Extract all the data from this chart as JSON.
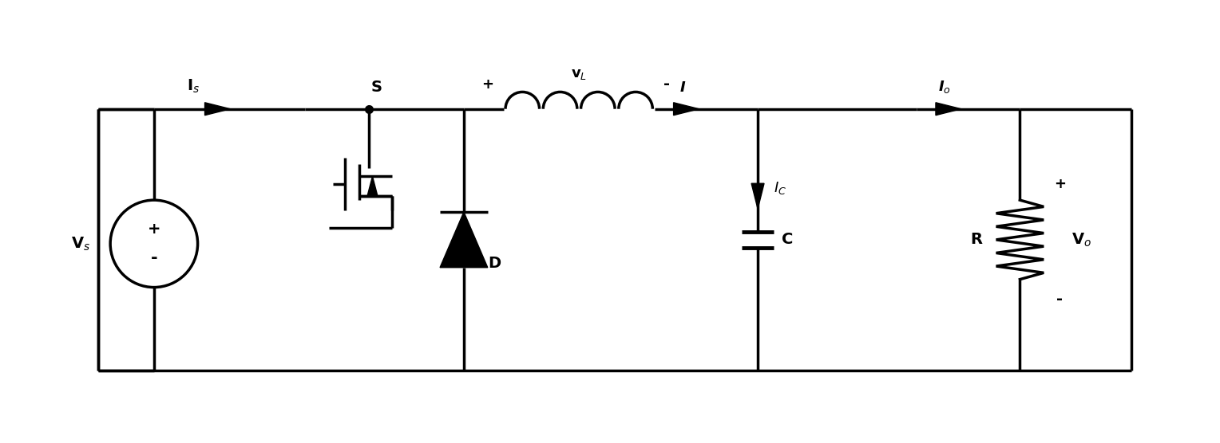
{
  "background": "#ffffff",
  "line_color": "black",
  "line_width": 2.5,
  "fig_width": 15.28,
  "fig_height": 5.56,
  "dpi": 100,
  "labels": {
    "Vs_label": "V$_s$",
    "Is_label": "I$_s$",
    "S_label": "S",
    "vL_label": "v$_L$",
    "plus_L": "+",
    "minus_L": "-",
    "I_label": "I",
    "Io_label": "I$_o$",
    "Ic_label": "$I_C$",
    "D_label": "D",
    "C_label": "C",
    "R_label": "R",
    "Vo_label": "V$_o$",
    "plus_Vs": "+",
    "minus_Vs": "-",
    "plus_Vo": "+",
    "minus_Vo": "-"
  }
}
